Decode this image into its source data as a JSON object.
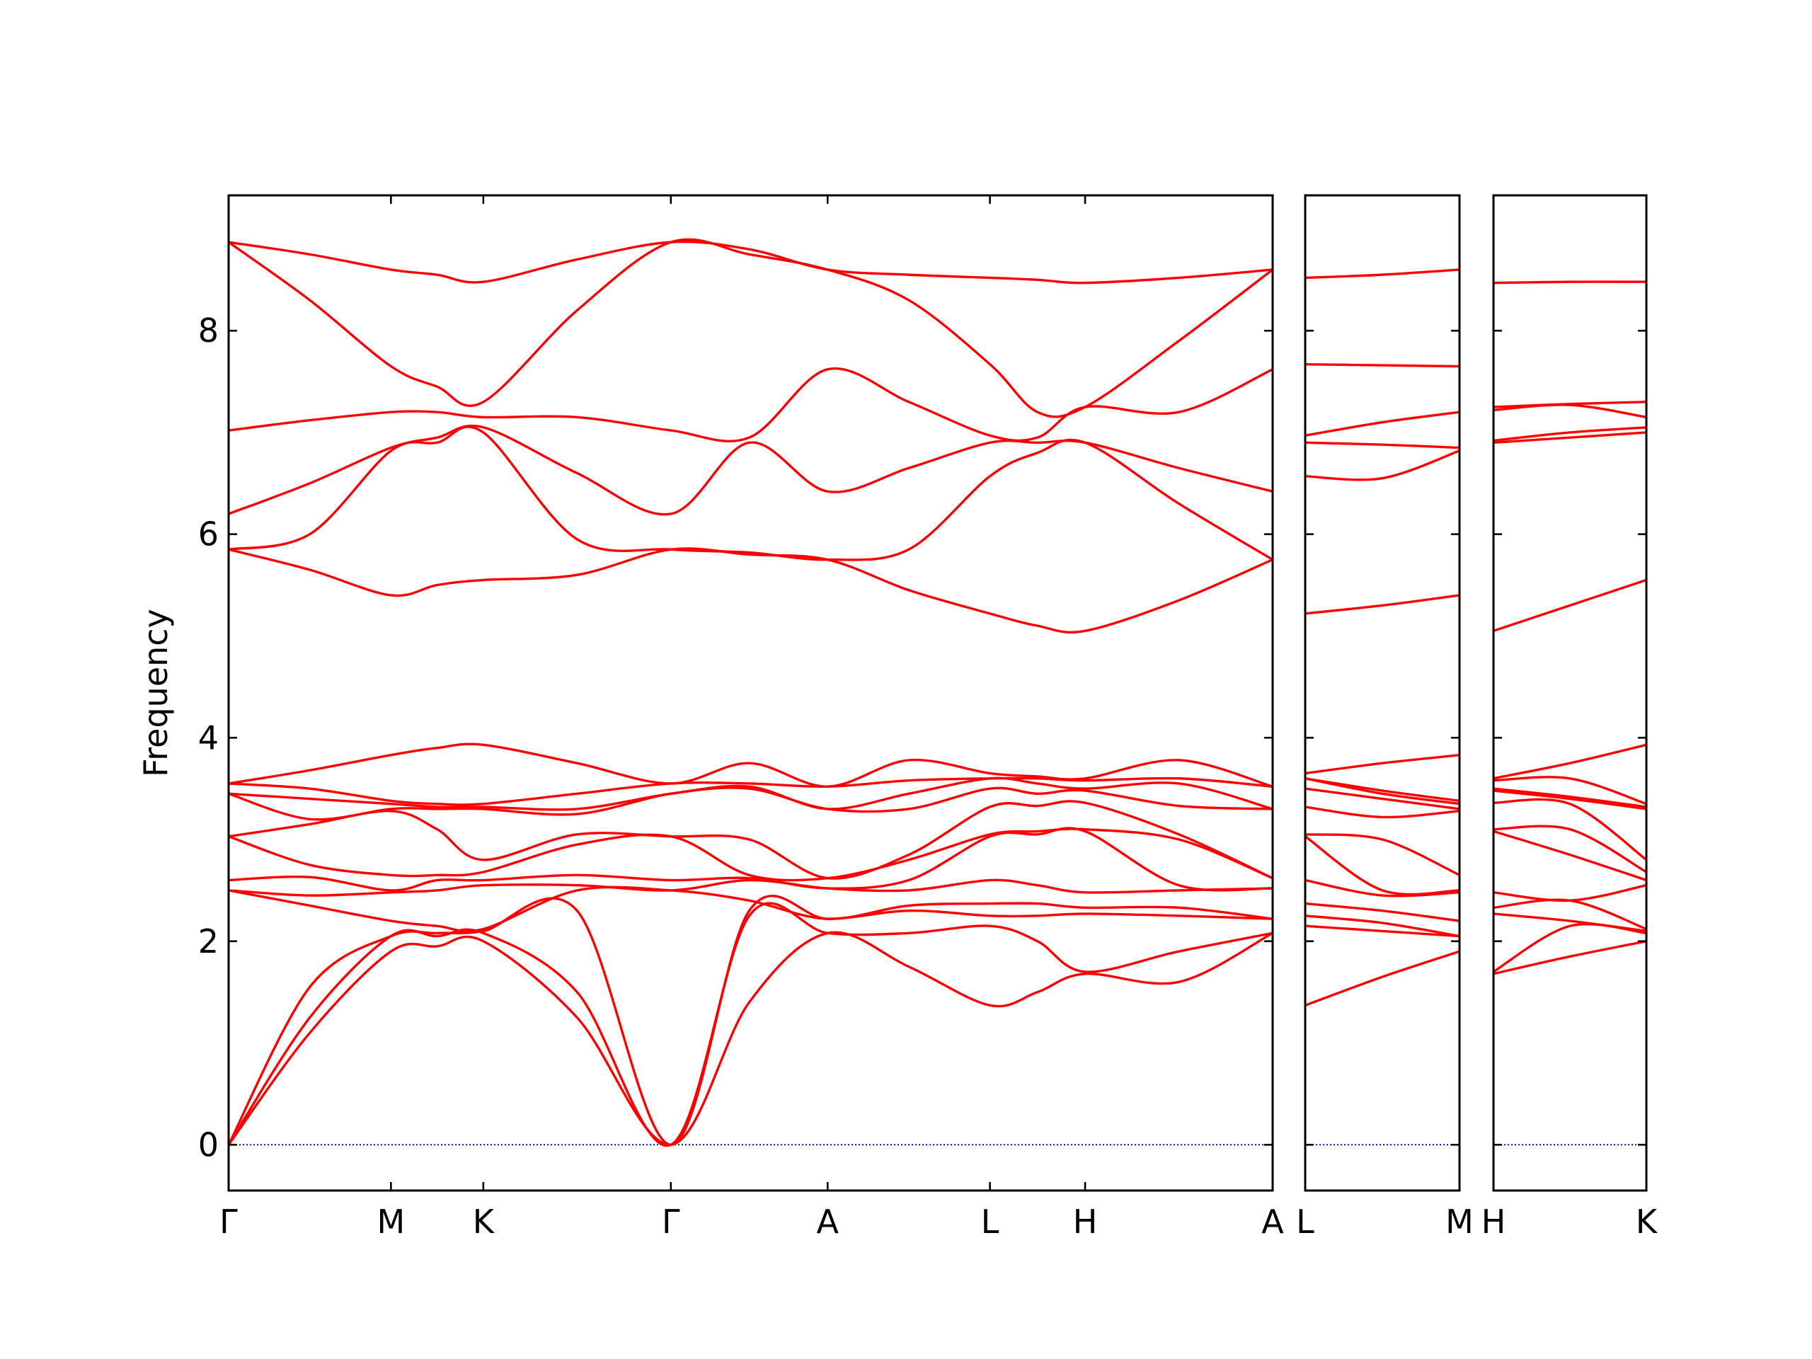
{
  "chart_data": [
    {
      "type": "line",
      "y_label": "Frequency",
      "color": "#ff0000",
      "hline": 0,
      "hline_color": "#0000ff",
      "show_ytick_labels": true,
      "ylim": [
        -0.45,
        9.33
      ],
      "yticks": [
        0,
        2,
        4,
        6,
        8
      ],
      "xlim": [
        0,
        3.73
      ],
      "xticks": [
        {
          "value": 0,
          "label": "Γ"
        },
        {
          "value": 0.58,
          "label": "M"
        },
        {
          "value": 0.91,
          "label": "K"
        },
        {
          "value": 1.58,
          "label": "Γ"
        },
        {
          "value": 2.14,
          "label": "A"
        },
        {
          "value": 2.72,
          "label": "L"
        },
        {
          "value": 3.06,
          "label": "H"
        },
        {
          "value": 3.73,
          "label": "A"
        }
      ],
      "x": [
        0,
        0.29,
        0.58,
        0.745,
        0.91,
        1.245,
        1.58,
        1.86,
        2.14,
        2.43,
        2.72,
        2.89,
        3.06,
        3.395,
        3.73
      ],
      "series": [
        {
          "values": [
            0,
            1.1,
            1.9,
            1.95,
            2.0,
            1.25,
            0,
            1.4,
            2.08,
            1.75,
            1.37,
            1.5,
            1.68,
            1.6,
            2.08
          ]
        },
        {
          "values": [
            0,
            1.25,
            2.05,
            2.05,
            2.08,
            1.5,
            0,
            2.25,
            2.08,
            2.08,
            2.15,
            2.0,
            1.7,
            1.9,
            2.08
          ]
        },
        {
          "values": [
            0,
            1.55,
            2.05,
            2.08,
            2.1,
            2.3,
            0,
            2.3,
            2.22,
            2.3,
            2.25,
            2.25,
            2.27,
            2.25,
            2.22
          ]
        },
        {
          "values": [
            2.5,
            2.35,
            2.2,
            2.15,
            2.12,
            2.5,
            2.5,
            2.4,
            2.22,
            2.35,
            2.37,
            2.37,
            2.33,
            2.33,
            2.22
          ]
        },
        {
          "values": [
            2.5,
            2.45,
            2.48,
            2.5,
            2.55,
            2.55,
            2.5,
            2.6,
            2.52,
            2.5,
            2.6,
            2.55,
            2.48,
            2.5,
            2.52
          ]
        },
        {
          "values": [
            2.6,
            2.63,
            2.5,
            2.6,
            2.6,
            2.65,
            2.6,
            2.62,
            2.52,
            2.6,
            3.03,
            3.05,
            3.08,
            2.55,
            2.52
          ]
        },
        {
          "values": [
            3.03,
            2.75,
            2.65,
            2.65,
            2.68,
            2.95,
            3.03,
            2.65,
            2.62,
            2.8,
            3.05,
            3.08,
            3.1,
            3.0,
            2.62
          ]
        },
        {
          "values": [
            3.03,
            3.15,
            3.28,
            3.1,
            2.8,
            3.05,
            3.03,
            3.0,
            2.62,
            2.85,
            3.32,
            3.33,
            3.36,
            3.05,
            2.62
          ]
        },
        {
          "values": [
            3.45,
            3.2,
            3.3,
            3.3,
            3.3,
            3.25,
            3.45,
            3.5,
            3.3,
            3.3,
            3.5,
            3.45,
            3.48,
            3.33,
            3.3
          ]
        },
        {
          "values": [
            3.45,
            3.4,
            3.35,
            3.32,
            3.32,
            3.3,
            3.45,
            3.52,
            3.3,
            3.45,
            3.6,
            3.55,
            3.5,
            3.55,
            3.3
          ]
        },
        {
          "values": [
            3.55,
            3.5,
            3.38,
            3.35,
            3.35,
            3.45,
            3.55,
            3.55,
            3.52,
            3.58,
            3.6,
            3.6,
            3.58,
            3.6,
            3.52
          ]
        },
        {
          "values": [
            3.55,
            3.68,
            3.83,
            3.9,
            3.93,
            3.75,
            3.55,
            3.75,
            3.52,
            3.78,
            3.65,
            3.62,
            3.6,
            3.78,
            3.52
          ]
        },
        {
          "values": [
            5.85,
            5.65,
            5.4,
            5.5,
            5.55,
            5.6,
            5.85,
            5.8,
            5.75,
            5.45,
            5.22,
            5.1,
            5.05,
            5.35,
            5.75
          ]
        },
        {
          "values": [
            5.85,
            6.0,
            6.82,
            6.9,
            7.0,
            5.95,
            5.85,
            5.82,
            5.75,
            5.85,
            6.57,
            6.8,
            6.9,
            6.3,
            5.75
          ]
        },
        {
          "values": [
            6.2,
            6.5,
            6.85,
            6.95,
            7.05,
            6.6,
            6.2,
            6.9,
            6.42,
            6.65,
            6.9,
            6.9,
            6.9,
            6.65,
            6.42
          ]
        },
        {
          "values": [
            7.02,
            7.12,
            7.2,
            7.2,
            7.15,
            7.15,
            7.02,
            6.95,
            7.62,
            7.3,
            6.97,
            6.95,
            7.25,
            7.2,
            7.62
          ]
        },
        {
          "values": [
            8.87,
            8.3,
            7.65,
            7.45,
            7.3,
            8.2,
            8.87,
            8.75,
            8.6,
            8.3,
            7.67,
            7.2,
            7.25,
            7.9,
            8.6
          ]
        },
        {
          "values": [
            8.87,
            8.75,
            8.6,
            8.55,
            8.48,
            8.7,
            8.87,
            8.8,
            8.6,
            8.55,
            8.52,
            8.5,
            8.47,
            8.52,
            8.6
          ]
        }
      ]
    },
    {
      "type": "line",
      "color": "#ff0000",
      "hline": 0,
      "hline_color": "#0000ff",
      "show_ytick_labels": false,
      "ylim": [
        -0.45,
        9.33
      ],
      "yticks": [
        0,
        2,
        4,
        6,
        8
      ],
      "xlim": [
        0,
        0.55
      ],
      "xticks": [
        {
          "value": 0,
          "label": "L"
        },
        {
          "value": 0.55,
          "label": "M"
        }
      ],
      "x": [
        0,
        0.275,
        0.55
      ],
      "series": [
        {
          "values": [
            1.37,
            1.65,
            1.9
          ]
        },
        {
          "values": [
            2.15,
            2.1,
            2.05
          ]
        },
        {
          "values": [
            2.25,
            2.18,
            2.05
          ]
        },
        {
          "values": [
            2.37,
            2.3,
            2.2
          ]
        },
        {
          "values": [
            2.6,
            2.45,
            2.48
          ]
        },
        {
          "values": [
            3.03,
            2.5,
            2.5
          ]
        },
        {
          "values": [
            3.05,
            3.0,
            2.65
          ]
        },
        {
          "values": [
            3.32,
            3.22,
            3.28
          ]
        },
        {
          "values": [
            3.5,
            3.4,
            3.3
          ]
        },
        {
          "values": [
            3.6,
            3.45,
            3.35
          ]
        },
        {
          "values": [
            3.6,
            3.48,
            3.38
          ]
        },
        {
          "values": [
            3.65,
            3.75,
            3.83
          ]
        },
        {
          "values": [
            5.22,
            5.3,
            5.4
          ]
        },
        {
          "values": [
            6.57,
            6.55,
            6.82
          ]
        },
        {
          "values": [
            6.9,
            6.88,
            6.85
          ]
        },
        {
          "values": [
            6.97,
            7.1,
            7.2
          ]
        },
        {
          "values": [
            7.67,
            7.66,
            7.65
          ]
        },
        {
          "values": [
            8.52,
            8.55,
            8.6
          ]
        }
      ]
    },
    {
      "type": "line",
      "color": "#ff0000",
      "hline": 0,
      "hline_color": "#0000ff",
      "show_ytick_labels": false,
      "ylim": [
        -0.45,
        9.33
      ],
      "yticks": [
        0,
        2,
        4,
        6,
        8
      ],
      "xlim": [
        0,
        0.55
      ],
      "xticks": [
        {
          "value": 0,
          "label": "H"
        },
        {
          "value": 0.55,
          "label": "K"
        }
      ],
      "x": [
        0,
        0.275,
        0.55
      ],
      "series": [
        {
          "values": [
            1.68,
            1.85,
            2.0
          ]
        },
        {
          "values": [
            1.7,
            2.15,
            2.08
          ]
        },
        {
          "values": [
            2.27,
            2.2,
            2.1
          ]
        },
        {
          "values": [
            2.33,
            2.4,
            2.12
          ]
        },
        {
          "values": [
            2.48,
            2.4,
            2.55
          ]
        },
        {
          "values": [
            3.08,
            2.85,
            2.6
          ]
        },
        {
          "values": [
            3.1,
            3.1,
            2.68
          ]
        },
        {
          "values": [
            3.36,
            3.35,
            2.8
          ]
        },
        {
          "values": [
            3.48,
            3.4,
            3.3
          ]
        },
        {
          "values": [
            3.5,
            3.42,
            3.32
          ]
        },
        {
          "values": [
            3.58,
            3.6,
            3.35
          ]
        },
        {
          "values": [
            3.6,
            3.75,
            3.93
          ]
        },
        {
          "values": [
            5.05,
            5.3,
            5.55
          ]
        },
        {
          "values": [
            6.9,
            6.95,
            7.0
          ]
        },
        {
          "values": [
            6.92,
            7.0,
            7.05
          ]
        },
        {
          "values": [
            7.22,
            7.27,
            7.15
          ]
        },
        {
          "values": [
            7.25,
            7.28,
            7.3
          ]
        },
        {
          "values": [
            8.47,
            8.48,
            8.48
          ]
        }
      ]
    }
  ]
}
